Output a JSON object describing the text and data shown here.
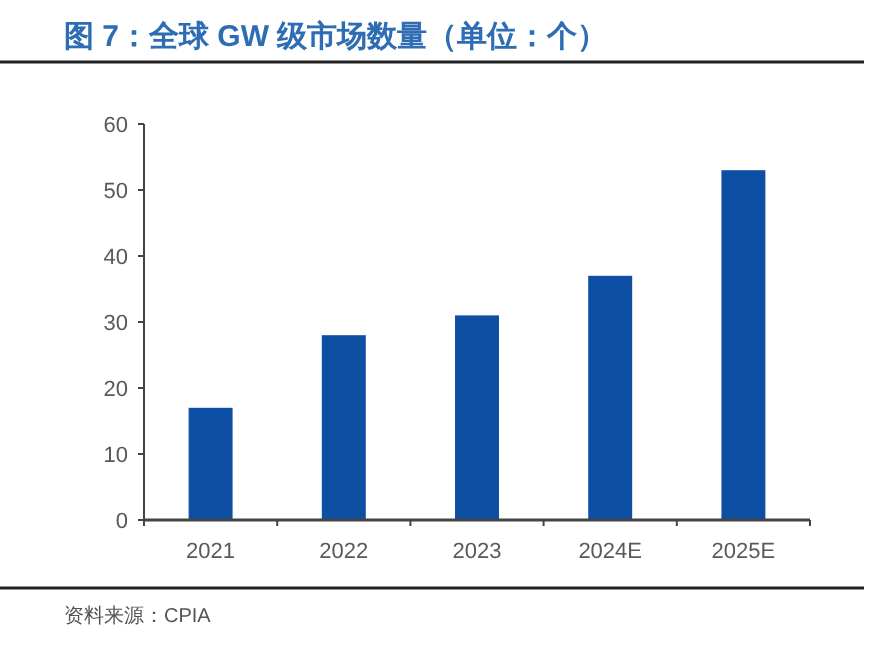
{
  "chart_data": {
    "type": "bar",
    "title": "图 7：全球 GW 级市场数量（单位：个）",
    "categories": [
      "2021",
      "2022",
      "2023",
      "2024E",
      "2025E"
    ],
    "values": [
      17,
      28,
      31,
      37,
      53
    ],
    "color": "#0d4fa3",
    "ylim": [
      0,
      60
    ],
    "yticks": [
      0,
      10,
      20,
      30,
      40,
      50,
      60
    ],
    "grid": false,
    "annotations": [
      "资料来源：CPIA"
    ]
  }
}
